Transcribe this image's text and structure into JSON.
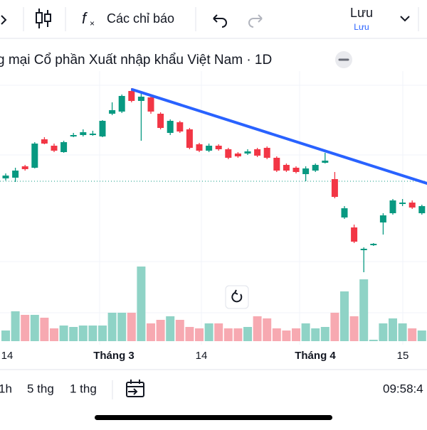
{
  "toolbar": {
    "indicators": "Các chỉ báo",
    "save": "Lưu",
    "save_sub": "Lưu"
  },
  "symbol_title": "g mại Cổ phần Xuất nhập khẩu Việt Nam · 1D",
  "chart_data": {
    "type": "candlestick",
    "x_labels": [
      "14",
      "Tháng 3",
      "14",
      "Tháng 4",
      "15"
    ],
    "open": [
      229,
      230,
      246,
      244,
      284,
      275,
      266,
      288,
      290,
      290,
      288,
      320,
      323,
      352,
      338,
      343,
      320,
      293,
      308,
      298,
      277,
      268,
      275,
      270,
      264,
      264,
      270,
      272,
      258,
      248,
      244,
      235,
      240,
      251,
      228,
      174,
      160,
      128,
      135,
      167,
      180,
      193,
      195,
      180
    ],
    "high": [
      236,
      244,
      248,
      280,
      287,
      278,
      282,
      293,
      298,
      296,
      311,
      336,
      347,
      356,
      350,
      346,
      322,
      312,
      310,
      300,
      279,
      278,
      277,
      272,
      266,
      270,
      272,
      274,
      260,
      250,
      246,
      246,
      250,
      265,
      238,
      190,
      164,
      132,
      138,
      180,
      200,
      200,
      198,
      192
    ],
    "low": [
      226,
      224,
      240,
      243,
      277,
      266,
      265,
      287,
      288,
      289,
      287,
      318,
      321,
      336,
      282,
      320,
      298,
      290,
      293,
      270,
      266,
      266,
      268,
      256,
      258,
      262,
      259,
      256,
      238,
      238,
      236,
      225,
      238,
      250,
      201,
      172,
      138,
      97,
      134,
      150,
      178,
      190,
      186,
      178
    ],
    "close": [
      233,
      240,
      242,
      278,
      278,
      268,
      280,
      290,
      294,
      292,
      310,
      325,
      345,
      338,
      344,
      323,
      300,
      310,
      295,
      272,
      268,
      275,
      270,
      258,
      260,
      267,
      261,
      258,
      240,
      240,
      238,
      243,
      248,
      254,
      203,
      187,
      140,
      130,
      137,
      177,
      198,
      195,
      188,
      190
    ],
    "volume": [
      15,
      42,
      37,
      37,
      33,
      18,
      22,
      20,
      22,
      22,
      22,
      40,
      40,
      40,
      105,
      25,
      30,
      35,
      30,
      20,
      18,
      25,
      25,
      18,
      18,
      20,
      35,
      32,
      18,
      15,
      18,
      25,
      18,
      20,
      40,
      70,
      35,
      87,
      2,
      25,
      32,
      25,
      18,
      15
    ],
    "ylim": [
      0,
      412
    ],
    "up_color": "#089981",
    "down_color": "#f23645",
    "up_volume_color": "#8fd3c6",
    "down_volume_color": "#f7a9b1"
  },
  "bottom_bar": {
    "ranges": [
      "1h",
      "5 thg",
      "1 thg"
    ],
    "time": "09:58:4"
  }
}
